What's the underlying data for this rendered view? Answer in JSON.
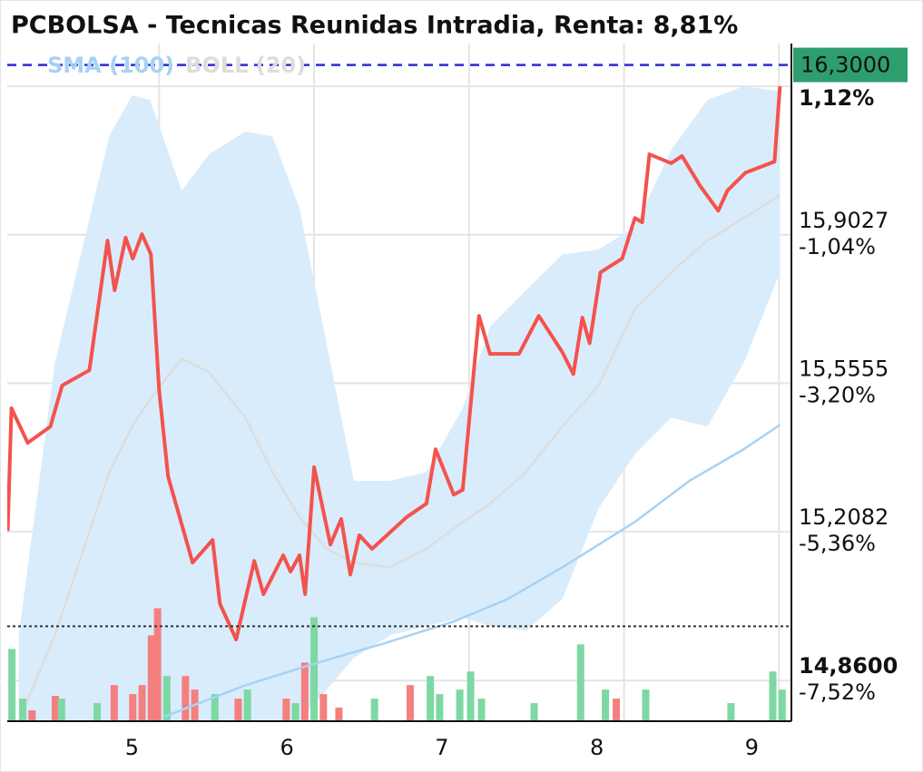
{
  "chart_data": {
    "type": "line",
    "title": "PCBOLSA - Tecnicas Reunidas Intradia, Renta: 8,81%",
    "xlim": [
      4.02,
      9.08
    ],
    "xticks": [
      5,
      6,
      7,
      8,
      9
    ],
    "ylim": [
      14.765,
      16.35
    ],
    "yticks": [
      {
        "value": 16.2499,
        "label": null
      },
      {
        "value": 15.9027,
        "label": "15,9027"
      },
      {
        "value": 15.5555,
        "label": "15,5555"
      },
      {
        "value": 15.2082,
        "label": "15,2082"
      },
      {
        "value": 14.86,
        "label": "14,8600"
      }
    ],
    "ytick_changes": [
      "1,12%",
      "-1,04%",
      "-3,20%",
      "-5,36%",
      "-7,52%"
    ],
    "ytick_change_colors": [
      "#2e9e6e",
      "#f0524d",
      "#f0524d",
      "#f0524d",
      "#f0524d"
    ],
    "grid": true,
    "current_price": {
      "value": 16.3,
      "label": "16,3000",
      "color": "#2e9e6e",
      "line_color": "#2a2ae0"
    },
    "low_line": 14.987,
    "y2lim": [
      0,
      750
    ],
    "series": [
      {
        "color": "#f4524d",
        "x": [
          4.023,
          4.047,
          4.152,
          4.298,
          4.374,
          4.55,
          4.667,
          4.713,
          4.784,
          4.83,
          4.889,
          4.947,
          5.0,
          5.058,
          5.216,
          5.345,
          5.392,
          5.497,
          5.614,
          5.673,
          5.801,
          5.848,
          5.906,
          5.942,
          6.0,
          6.105,
          6.175,
          6.234,
          6.292,
          6.374,
          6.596,
          6.725,
          6.784,
          6.901,
          6.959,
          7.064,
          7.135,
          7.322,
          7.45,
          7.602,
          7.673,
          7.731,
          7.778,
          7.848,
          7.988,
          8.07,
          8.117,
          8.164,
          8.304,
          8.374,
          8.491,
          8.608,
          8.667,
          8.784,
          8.971,
          9.006
        ],
        "values": [
          15.21,
          15.497,
          15.416,
          15.454,
          15.55,
          15.586,
          15.889,
          15.773,
          15.896,
          15.847,
          15.904,
          15.857,
          15.539,
          15.337,
          15.136,
          15.189,
          15.04,
          14.956,
          15.14,
          15.062,
          15.153,
          15.115,
          15.153,
          15.062,
          15.359,
          15.178,
          15.238,
          15.108,
          15.2,
          15.168,
          15.242,
          15.274,
          15.401,
          15.295,
          15.306,
          15.713,
          15.624,
          15.624,
          15.713,
          15.628,
          15.577,
          15.709,
          15.649,
          15.815,
          15.847,
          15.942,
          15.932,
          16.091,
          16.07,
          16.087,
          16.017,
          15.959,
          16.006,
          16.048,
          16.074,
          16.25
        ]
      },
      {
        "name": "SMA (100)",
        "color": "#a6d2f5",
        "x": [
          5.029,
          5.556,
          6.023,
          6.433,
          6.901,
          7.251,
          7.602,
          8.07,
          8.421,
          8.772,
          9.006
        ],
        "values": [
          14.775,
          14.849,
          14.902,
          14.945,
          14.998,
          15.051,
          15.125,
          15.231,
          15.327,
          15.401,
          15.458
        ]
      },
      {
        "name": "BOLL (20)",
        "color": "#dddddd",
        "band_color": "#d9ecfb",
        "x": [
          4.094,
          4.327,
          4.678,
          4.825,
          4.942,
          5.146,
          5.322,
          5.556,
          5.731,
          5.906,
          6.082,
          6.257,
          6.491,
          6.725,
          6.959,
          7.135,
          7.368,
          7.602,
          7.836,
          8.07,
          8.304,
          8.538,
          8.772,
          9.006
        ],
        "values": [
          14.765,
          14.966,
          15.348,
          15.454,
          15.518,
          15.613,
          15.581,
          15.475,
          15.348,
          15.242,
          15.168,
          15.136,
          15.125,
          15.168,
          15.231,
          15.274,
          15.348,
          15.454,
          15.55,
          15.73,
          15.815,
          15.889,
          15.942,
          15.995
        ],
        "upper": [
          14.966,
          15.603,
          16.133,
          16.229,
          16.218,
          16.006,
          16.091,
          16.144,
          16.133,
          15.964,
          15.645,
          15.327,
          15.327,
          15.348,
          15.497,
          15.688,
          15.773,
          15.857,
          15.868,
          15.921,
          16.101,
          16.218,
          16.25,
          16.239
        ],
        "lower": [
          14.765,
          14.765,
          14.765,
          14.765,
          14.765,
          14.765,
          14.765,
          14.765,
          14.765,
          14.765,
          14.839,
          14.913,
          14.966,
          14.987,
          15.008,
          14.987,
          14.977,
          15.051,
          15.263,
          15.39,
          15.475,
          15.454,
          15.603,
          15.815
        ]
      },
      {
        "type": "bar",
        "axis": "y2",
        "x": [
          4.05,
          4.12,
          4.18,
          4.33,
          4.37,
          4.6,
          4.71,
          4.83,
          4.89,
          4.95,
          4.99,
          5.05,
          5.17,
          5.23,
          5.36,
          5.51,
          5.57,
          5.82,
          5.88,
          5.94,
          6.0,
          6.06,
          6.16,
          6.39,
          6.62,
          6.75,
          6.81,
          6.94,
          7.01,
          7.08,
          7.42,
          7.72,
          7.88,
          7.95,
          8.14,
          8.69,
          8.96,
          9.02
        ],
        "values": [
          80,
          25,
          12,
          28,
          25,
          20,
          40,
          30,
          40,
          95,
          125,
          50,
          50,
          35,
          30,
          25,
          35,
          25,
          20,
          65,
          115,
          30,
          15,
          25,
          40,
          50,
          30,
          35,
          55,
          25,
          20,
          85,
          35,
          25,
          35,
          20,
          55,
          35
        ],
        "colors": [
          "#7dd8a4",
          "#7dd8a4",
          "#f47f7f",
          "#f47f7f",
          "#7dd8a4",
          "#7dd8a4",
          "#f47f7f",
          "#f47f7f",
          "#f47f7f",
          "#f47f7f",
          "#f47f7f",
          "#7dd8a4",
          "#f47f7f",
          "#f47f7f",
          "#7dd8a4",
          "#f47f7f",
          "#7dd8a4",
          "#f47f7f",
          "#7dd8a4",
          "#f47f7f",
          "#7dd8a4",
          "#f47f7f",
          "#f47f7f",
          "#7dd8a4",
          "#f47f7f",
          "#7dd8a4",
          "#7dd8a4",
          "#7dd8a4",
          "#7dd8a4",
          "#7dd8a4",
          "#7dd8a4",
          "#7dd8a4",
          "#7dd8a4",
          "#f47f7f",
          "#7dd8a4",
          "#7dd8a4",
          "#7dd8a4",
          "#7dd8a4"
        ]
      }
    ]
  }
}
